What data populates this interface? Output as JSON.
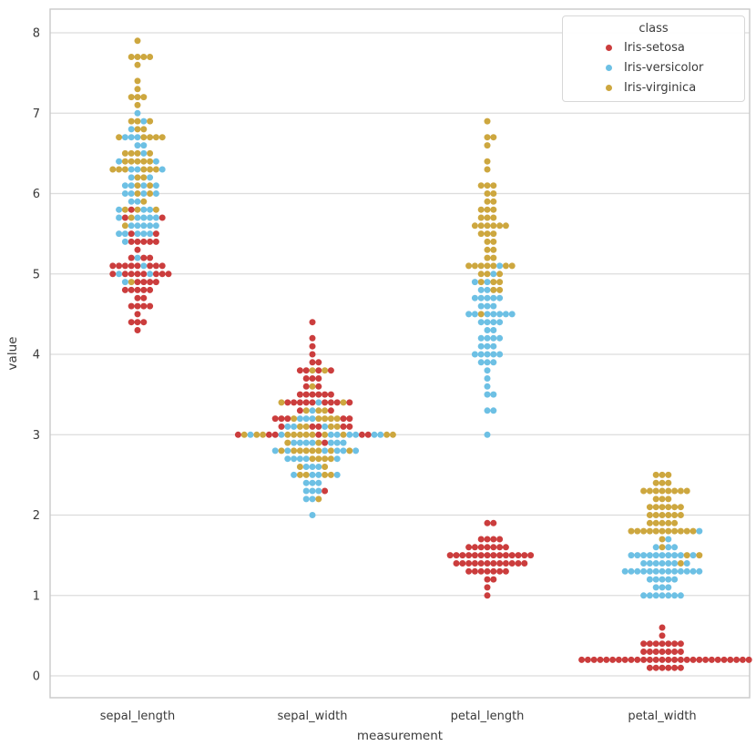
{
  "chart_data": {
    "type": "scatter",
    "variant": "swarm",
    "title": "",
    "xlabel": "measurement",
    "ylabel": "value",
    "categories": [
      "sepal_length",
      "sepal_width",
      "petal_length",
      "petal_width"
    ],
    "yticks": [
      0,
      1,
      2,
      3,
      4,
      5,
      6,
      7,
      8
    ],
    "ylim": [
      -0.27,
      8.29
    ],
    "grid": true,
    "legend": {
      "title": "class",
      "position": "upper right"
    },
    "colors": {
      "grid": "#dcdcdc",
      "spine": "#c9c9c9",
      "text": "#3a3a3a"
    },
    "series": [
      {
        "name": "Iris-setosa",
        "color": "#CB3D3D",
        "rows": [
          [
            5.1,
            3.5,
            1.4,
            0.2
          ],
          [
            4.9,
            3.0,
            1.4,
            0.2
          ],
          [
            4.7,
            3.2,
            1.3,
            0.2
          ],
          [
            4.6,
            3.1,
            1.5,
            0.2
          ],
          [
            5.0,
            3.6,
            1.4,
            0.2
          ],
          [
            5.4,
            3.9,
            1.7,
            0.4
          ],
          [
            4.6,
            3.4,
            1.4,
            0.3
          ],
          [
            5.0,
            3.4,
            1.5,
            0.2
          ],
          [
            4.4,
            2.9,
            1.4,
            0.2
          ],
          [
            4.9,
            3.1,
            1.5,
            0.1
          ],
          [
            5.4,
            3.7,
            1.5,
            0.2
          ],
          [
            4.8,
            3.4,
            1.6,
            0.2
          ],
          [
            4.8,
            3.0,
            1.4,
            0.1
          ],
          [
            4.3,
            3.0,
            1.1,
            0.1
          ],
          [
            5.8,
            4.0,
            1.2,
            0.2
          ],
          [
            5.7,
            4.4,
            1.5,
            0.4
          ],
          [
            5.4,
            3.9,
            1.3,
            0.4
          ],
          [
            5.1,
            3.5,
            1.4,
            0.3
          ],
          [
            5.7,
            3.8,
            1.7,
            0.3
          ],
          [
            5.1,
            3.8,
            1.5,
            0.3
          ],
          [
            5.4,
            3.4,
            1.7,
            0.2
          ],
          [
            5.1,
            3.7,
            1.5,
            0.4
          ],
          [
            4.6,
            3.6,
            1.0,
            0.2
          ],
          [
            5.1,
            3.3,
            1.7,
            0.5
          ],
          [
            4.8,
            3.4,
            1.9,
            0.2
          ],
          [
            5.0,
            3.0,
            1.6,
            0.2
          ],
          [
            5.0,
            3.4,
            1.6,
            0.4
          ],
          [
            5.2,
            3.5,
            1.5,
            0.2
          ],
          [
            5.2,
            3.4,
            1.4,
            0.2
          ],
          [
            4.7,
            3.2,
            1.6,
            0.2
          ],
          [
            4.8,
            3.1,
            1.6,
            0.2
          ],
          [
            5.4,
            3.4,
            1.5,
            0.4
          ],
          [
            5.2,
            4.1,
            1.5,
            0.1
          ],
          [
            5.5,
            4.2,
            1.4,
            0.2
          ],
          [
            4.9,
            3.1,
            1.5,
            0.1
          ],
          [
            5.0,
            3.2,
            1.2,
            0.2
          ],
          [
            5.5,
            3.5,
            1.3,
            0.2
          ],
          [
            4.9,
            3.1,
            1.5,
            0.1
          ],
          [
            4.4,
            3.0,
            1.3,
            0.2
          ],
          [
            5.1,
            3.4,
            1.5,
            0.2
          ],
          [
            5.0,
            3.5,
            1.3,
            0.3
          ],
          [
            4.5,
            2.3,
            1.3,
            0.3
          ],
          [
            4.4,
            3.2,
            1.3,
            0.2
          ],
          [
            5.0,
            3.5,
            1.6,
            0.6
          ],
          [
            5.1,
            3.8,
            1.9,
            0.4
          ],
          [
            4.8,
            3.0,
            1.4,
            0.3
          ],
          [
            5.1,
            3.8,
            1.6,
            0.2
          ],
          [
            4.6,
            3.2,
            1.4,
            0.2
          ],
          [
            5.3,
            3.7,
            1.5,
            0.2
          ],
          [
            5.0,
            3.3,
            1.4,
            0.2
          ]
        ]
      },
      {
        "name": "Iris-versicolor",
        "color": "#6DC0E4",
        "rows": [
          [
            7.0,
            3.2,
            4.7,
            1.4
          ],
          [
            6.4,
            3.2,
            4.5,
            1.5
          ],
          [
            6.9,
            3.1,
            4.9,
            1.5
          ],
          [
            5.5,
            2.3,
            4.0,
            1.3
          ],
          [
            6.5,
            2.8,
            4.6,
            1.5
          ],
          [
            5.7,
            2.8,
            4.5,
            1.3
          ],
          [
            6.3,
            3.3,
            4.7,
            1.6
          ],
          [
            4.9,
            2.4,
            3.3,
            1.0
          ],
          [
            6.6,
            2.9,
            4.6,
            1.3
          ],
          [
            5.2,
            2.7,
            3.9,
            1.4
          ],
          [
            5.0,
            2.0,
            3.5,
            1.0
          ],
          [
            5.9,
            3.0,
            4.2,
            1.5
          ],
          [
            6.0,
            2.2,
            4.0,
            1.0
          ],
          [
            6.1,
            2.9,
            4.7,
            1.4
          ],
          [
            5.6,
            2.9,
            3.6,
            1.3
          ],
          [
            6.7,
            3.1,
            4.4,
            1.4
          ],
          [
            5.6,
            3.0,
            4.5,
            1.5
          ],
          [
            5.8,
            2.7,
            4.1,
            1.0
          ],
          [
            6.2,
            2.2,
            4.5,
            1.5
          ],
          [
            5.6,
            2.5,
            3.9,
            1.1
          ],
          [
            5.9,
            3.2,
            4.8,
            1.8
          ],
          [
            6.1,
            2.8,
            4.0,
            1.3
          ],
          [
            6.3,
            2.5,
            4.9,
            1.5
          ],
          [
            6.1,
            2.8,
            4.7,
            1.2
          ],
          [
            6.4,
            2.9,
            4.3,
            1.3
          ],
          [
            6.6,
            3.0,
            4.4,
            1.4
          ],
          [
            6.8,
            2.8,
            4.8,
            1.4
          ],
          [
            6.7,
            3.0,
            5.0,
            1.7
          ],
          [
            6.0,
            2.9,
            4.5,
            1.5
          ],
          [
            5.7,
            2.6,
            3.5,
            1.0
          ],
          [
            5.5,
            2.4,
            3.8,
            1.1
          ],
          [
            5.5,
            2.4,
            3.7,
            1.0
          ],
          [
            5.8,
            2.7,
            3.9,
            1.2
          ],
          [
            6.0,
            2.7,
            5.1,
            1.6
          ],
          [
            5.4,
            3.0,
            4.5,
            1.5
          ],
          [
            6.0,
            3.4,
            4.5,
            1.6
          ],
          [
            6.7,
            3.1,
            4.7,
            1.5
          ],
          [
            6.3,
            2.3,
            4.4,
            1.3
          ],
          [
            5.6,
            3.0,
            4.1,
            1.3
          ],
          [
            5.5,
            2.5,
            4.0,
            1.3
          ],
          [
            5.5,
            2.6,
            4.4,
            1.2
          ],
          [
            6.1,
            3.0,
            4.6,
            1.4
          ],
          [
            5.8,
            2.6,
            4.0,
            1.2
          ],
          [
            5.0,
            2.3,
            3.3,
            1.0
          ],
          [
            5.6,
            2.7,
            4.2,
            1.3
          ],
          [
            5.7,
            3.0,
            4.2,
            1.2
          ],
          [
            5.7,
            2.9,
            4.2,
            1.3
          ],
          [
            6.2,
            2.9,
            4.3,
            1.3
          ],
          [
            5.1,
            2.5,
            3.0,
            1.1
          ],
          [
            5.7,
            2.8,
            4.1,
            1.3
          ]
        ]
      },
      {
        "name": "Iris-virginica",
        "color": "#CDA73F",
        "rows": [
          [
            6.3,
            3.3,
            6.0,
            2.5
          ],
          [
            5.8,
            2.7,
            5.1,
            1.9
          ],
          [
            7.1,
            3.0,
            5.9,
            2.1
          ],
          [
            6.3,
            2.9,
            5.6,
            1.8
          ],
          [
            6.5,
            3.0,
            5.8,
            2.2
          ],
          [
            7.6,
            3.0,
            6.6,
            2.1
          ],
          [
            4.9,
            2.5,
            4.5,
            1.7
          ],
          [
            7.3,
            2.9,
            6.3,
            1.8
          ],
          [
            6.7,
            2.5,
            5.8,
            1.8
          ],
          [
            7.2,
            3.6,
            6.1,
            2.5
          ],
          [
            6.5,
            3.2,
            5.1,
            2.0
          ],
          [
            6.4,
            2.7,
            5.3,
            1.9
          ],
          [
            6.8,
            3.0,
            5.5,
            2.1
          ],
          [
            5.7,
            2.5,
            5.0,
            2.0
          ],
          [
            5.8,
            2.8,
            5.1,
            2.4
          ],
          [
            6.4,
            3.2,
            5.3,
            2.3
          ],
          [
            6.5,
            3.0,
            5.5,
            1.8
          ],
          [
            7.7,
            3.8,
            6.7,
            2.2
          ],
          [
            7.7,
            2.6,
            6.9,
            2.3
          ],
          [
            6.0,
            2.2,
            5.0,
            1.5
          ],
          [
            6.9,
            3.2,
            5.7,
            2.3
          ],
          [
            5.6,
            2.8,
            4.9,
            2.0
          ],
          [
            7.7,
            2.8,
            6.7,
            2.0
          ],
          [
            6.3,
            2.7,
            4.9,
            1.8
          ],
          [
            6.7,
            3.3,
            5.7,
            2.1
          ],
          [
            7.2,
            3.2,
            6.0,
            1.8
          ],
          [
            6.2,
            2.8,
            4.8,
            1.8
          ],
          [
            6.1,
            3.0,
            4.9,
            1.8
          ],
          [
            6.4,
            2.8,
            5.6,
            2.1
          ],
          [
            7.2,
            3.0,
            5.8,
            1.6
          ],
          [
            7.4,
            2.8,
            6.1,
            1.9
          ],
          [
            7.9,
            3.8,
            6.4,
            2.0
          ],
          [
            6.4,
            2.8,
            5.6,
            2.2
          ],
          [
            6.3,
            2.8,
            5.1,
            1.5
          ],
          [
            6.1,
            2.6,
            5.6,
            1.4
          ],
          [
            7.7,
            3.0,
            6.1,
            2.3
          ],
          [
            6.3,
            3.4,
            5.6,
            2.4
          ],
          [
            6.4,
            3.1,
            5.5,
            1.8
          ],
          [
            6.0,
            3.0,
            4.8,
            1.8
          ],
          [
            6.9,
            3.1,
            5.4,
            2.1
          ],
          [
            6.7,
            3.1,
            5.6,
            2.4
          ],
          [
            6.9,
            3.1,
            5.1,
            2.3
          ],
          [
            5.8,
            2.7,
            5.1,
            1.9
          ],
          [
            6.8,
            3.2,
            5.9,
            2.3
          ],
          [
            6.7,
            3.3,
            5.7,
            2.5
          ],
          [
            6.7,
            3.0,
            5.2,
            2.3
          ],
          [
            6.3,
            2.5,
            5.0,
            1.9
          ],
          [
            6.5,
            3.0,
            5.2,
            2.0
          ],
          [
            6.2,
            3.4,
            5.4,
            2.3
          ],
          [
            5.9,
            3.0,
            5.1,
            1.8
          ]
        ]
      }
    ]
  }
}
